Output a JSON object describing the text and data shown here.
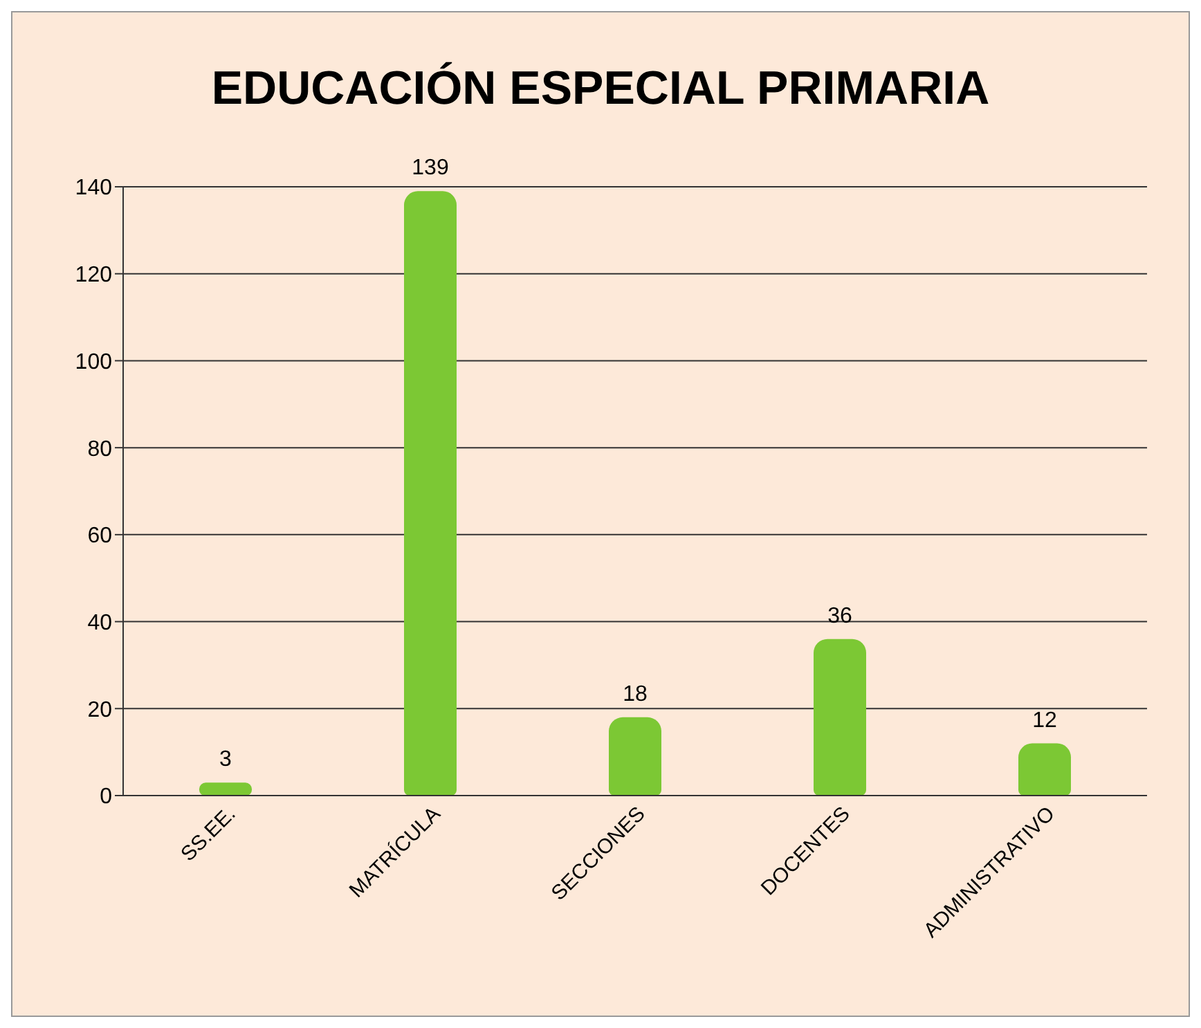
{
  "chart_data": {
    "type": "bar",
    "title": "EDUCACIÓN ESPECIAL PRIMARIA",
    "categories": [
      "SS.EE.",
      "MATRÍCULA",
      "SECCIONES",
      "DOCENTES",
      "ADMINISTRATIVO"
    ],
    "values": [
      3,
      139,
      18,
      36,
      12
    ],
    "color": "#7cc834",
    "ylim": [
      0,
      140
    ],
    "yticks": [
      0,
      20,
      40,
      60,
      80,
      100,
      120,
      140
    ],
    "grid": "y",
    "data_labels": true
  }
}
